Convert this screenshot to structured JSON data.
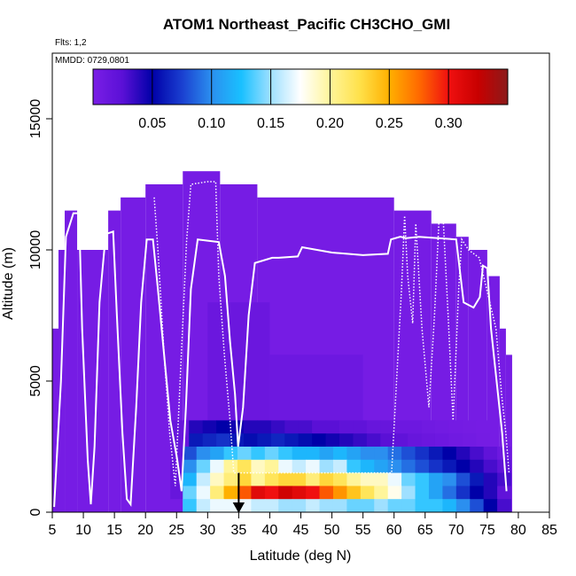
{
  "chart_data": {
    "type": "heatmap",
    "title": "ATOM1 Northeast_Pacific CH3CHO_GMI",
    "subtitle_flights": "Flts: 1,2",
    "subtitle_dates": "MMDD: 0729,0801",
    "xlabel": "Latitude (deg N)",
    "ylabel": "Altitude (m)",
    "xlim": [
      5,
      85
    ],
    "ylim": [
      0,
      17500
    ],
    "x_ticks": [
      5,
      10,
      15,
      20,
      25,
      30,
      35,
      40,
      45,
      50,
      55,
      60,
      65,
      70,
      75,
      80,
      85
    ],
    "y_ticks": [
      0,
      5000,
      10000,
      15000
    ],
    "colorbar": {
      "range": [
        0,
        0.35
      ],
      "ticks": [
        0.05,
        0.1,
        0.15,
        0.2,
        0.25,
        0.3
      ],
      "tick_labels": [
        "0.05",
        "0.10",
        "0.15",
        "0.20",
        "0.25",
        "0.30"
      ],
      "colors": [
        "#7a1ee6",
        "#5a10d6",
        "#0000a8",
        "#1a3fd0",
        "#2b8fef",
        "#19c0ff",
        "#9fe0ff",
        "#ffffff",
        "#fff59a",
        "#ffe14a",
        "#ffb000",
        "#ff6a00",
        "#f01010",
        "#c80000",
        "#8b1a1a"
      ]
    },
    "model_cells": [
      {
        "lat": [
          5,
          6
        ],
        "alt": [
          0,
          7000
        ],
        "value": 0.003
      },
      {
        "lat": [
          6,
          7
        ],
        "alt": [
          0,
          10000
        ],
        "value": 0.003
      },
      {
        "lat": [
          7,
          9
        ],
        "alt": [
          0,
          11500
        ],
        "value": 0.003
      },
      {
        "lat": [
          9,
          14
        ],
        "alt": [
          0,
          10000
        ],
        "value": 0.003
      },
      {
        "lat": [
          14,
          16
        ],
        "alt": [
          0,
          11500
        ],
        "value": 0.003
      },
      {
        "lat": [
          16,
          20
        ],
        "alt": [
          0,
          12000
        ],
        "value": 0.003
      },
      {
        "lat": [
          20,
          26
        ],
        "alt": [
          0,
          12500
        ],
        "value": 0.003
      },
      {
        "lat": [
          26,
          32
        ],
        "alt": [
          0,
          13000
        ],
        "value": 0.003
      },
      {
        "lat": [
          32,
          38
        ],
        "alt": [
          0,
          12500
        ],
        "value": 0.003
      },
      {
        "lat": [
          38,
          60
        ],
        "alt": [
          0,
          12000
        ],
        "value": 0.003
      },
      {
        "lat": [
          60,
          66
        ],
        "alt": [
          0,
          11500
        ],
        "value": 0.003
      },
      {
        "lat": [
          66,
          70
        ],
        "alt": [
          0,
          11000
        ],
        "value": 0.003
      },
      {
        "lat": [
          70,
          72
        ],
        "alt": [
          0,
          10500
        ],
        "value": 0.003
      },
      {
        "lat": [
          72,
          75
        ],
        "alt": [
          0,
          10000
        ],
        "value": 0.003
      },
      {
        "lat": [
          75,
          77
        ],
        "alt": [
          0,
          9000
        ],
        "value": 0.003
      },
      {
        "lat": [
          77,
          78
        ],
        "alt": [
          0,
          7000
        ],
        "value": 0.003
      },
      {
        "lat": [
          78,
          79
        ],
        "alt": [
          0,
          6000
        ],
        "value": 0.003
      },
      {
        "lat": [
          30,
          40
        ],
        "alt": [
          2000,
          8000
        ],
        "value": 0.012
      },
      {
        "lat": [
          40,
          55
        ],
        "alt": [
          2000,
          6000
        ],
        "value": 0.01
      },
      {
        "lat": [
          24,
          30
        ],
        "alt": [
          500,
          3500
        ],
        "value": 0.015
      }
    ],
    "curtain_rows": [
      {
        "alt": [
          3000,
          3500
        ],
        "lat0": 27,
        "cells": [
          0.04,
          0.045,
          0.05,
          0.045,
          0.04,
          0.04,
          0.035,
          0.03,
          0.03,
          0.025,
          0.025,
          0.02,
          0.02,
          0.015,
          0.015,
          0.01,
          0.01,
          0.008,
          0.006,
          0.005,
          0.004,
          0.003
        ]
      },
      {
        "alt": [
          2500,
          3000
        ],
        "lat0": 27,
        "cells": [
          0.06,
          0.065,
          0.07,
          0.06,
          0.055,
          0.06,
          0.065,
          0.06,
          0.055,
          0.05,
          0.045,
          0.04,
          0.035,
          0.03,
          0.025,
          0.02,
          0.015,
          0.012,
          0.01,
          0.008,
          0.006,
          0.004
        ]
      },
      {
        "alt": [
          2000,
          2500
        ],
        "lat0": 26,
        "cells": [
          0.08,
          0.1,
          0.11,
          0.13,
          0.14,
          0.13,
          0.14,
          0.13,
          0.12,
          0.12,
          0.11,
          0.12,
          0.11,
          0.1,
          0.1,
          0.09,
          0.08,
          0.07,
          0.06,
          0.05,
          0.04,
          0.03,
          0.02,
          0.01
        ]
      },
      {
        "alt": [
          1500,
          2000
        ],
        "lat0": 26,
        "cells": [
          0.1,
          0.14,
          0.17,
          0.2,
          0.22,
          0.19,
          0.2,
          0.17,
          0.16,
          0.17,
          0.15,
          0.16,
          0.13,
          0.12,
          0.11,
          0.1,
          0.09,
          0.08,
          0.07,
          0.06,
          0.05,
          0.04,
          0.03,
          0.02
        ]
      },
      {
        "alt": [
          1000,
          1500
        ],
        "lat0": 26,
        "cells": [
          0.12,
          0.16,
          0.19,
          0.21,
          0.23,
          0.2,
          0.22,
          0.23,
          0.23,
          0.21,
          0.23,
          0.22,
          0.2,
          0.19,
          0.19,
          0.17,
          0.14,
          0.13,
          0.11,
          0.1,
          0.08,
          0.06,
          0.04,
          0.03
        ]
      },
      {
        "alt": [
          500,
          1000
        ],
        "lat0": 26,
        "cells": [
          0.14,
          0.17,
          0.21,
          0.25,
          0.28,
          0.31,
          0.3,
          0.32,
          0.31,
          0.3,
          0.28,
          0.26,
          0.24,
          0.22,
          0.2,
          0.18,
          0.15,
          0.13,
          0.11,
          0.09,
          0.07,
          0.05,
          0.04,
          0.02
        ]
      },
      {
        "alt": [
          0,
          500
        ],
        "lat0": 26,
        "cells": [
          0.13,
          0.16,
          0.17,
          0.17,
          0.17,
          0.16,
          0.16,
          0.15,
          0.15,
          0.16,
          0.15,
          0.15,
          0.14,
          0.14,
          0.15,
          0.14,
          0.14,
          0.13,
          0.13,
          0.12,
          0.1,
          0.08,
          0.05,
          0.03
        ]
      }
    ],
    "flight_track": [
      [
        5.3,
        200
      ],
      [
        6.4,
        5000
      ],
      [
        7.2,
        10500
      ],
      [
        8.4,
        11400
      ],
      [
        9.3,
        11400
      ],
      [
        9.8,
        7000
      ],
      [
        10.7,
        2000
      ],
      [
        11.2,
        300
      ],
      [
        11.8,
        2500
      ],
      [
        12.6,
        8000
      ],
      [
        13.6,
        10600
      ],
      [
        14.8,
        10700
      ],
      [
        15.4,
        7500
      ],
      [
        16.3,
        3000
      ],
      [
        17.0,
        500
      ],
      [
        17.6,
        300
      ],
      [
        18.5,
        4000
      ],
      [
        19.3,
        8000
      ],
      [
        20.2,
        10400
      ],
      [
        21.2,
        10400
      ],
      [
        22.0,
        8500
      ],
      [
        23.0,
        6000
      ],
      [
        24.0,
        3500
      ],
      [
        25.1,
        2000
      ],
      [
        25.8,
        800
      ],
      [
        26.5,
        4000
      ],
      [
        27.3,
        8500
      ],
      [
        28.4,
        10400
      ],
      [
        31.8,
        10300
      ],
      [
        32.8,
        9000
      ],
      [
        33.6,
        6500
      ],
      [
        34.4,
        4500
      ],
      [
        34.9,
        2500
      ],
      [
        35.7,
        4000
      ],
      [
        36.6,
        7500
      ],
      [
        37.6,
        9500
      ],
      [
        40.4,
        9700
      ],
      [
        41.4,
        9700
      ],
      [
        44.5,
        9750
      ],
      [
        45.2,
        10100
      ],
      [
        50.0,
        9900
      ],
      [
        55.0,
        9800
      ],
      [
        59.0,
        9850
      ],
      [
        59.5,
        10400
      ],
      [
        61.0,
        10500
      ],
      [
        62.0,
        10450
      ],
      [
        64.0,
        10500
      ],
      [
        70.0,
        10400
      ],
      [
        71.2,
        8000
      ],
      [
        72.8,
        7800
      ],
      [
        73.8,
        8200
      ],
      [
        74.3,
        9400
      ],
      [
        75.0,
        9300
      ],
      [
        75.6,
        7000
      ],
      [
        76.5,
        5000
      ],
      [
        77.4,
        3000
      ],
      [
        78.1,
        800
      ]
    ],
    "flight_track_dotted": [
      [
        21.4,
        12000
      ],
      [
        22.0,
        10000
      ],
      [
        23.0,
        6000
      ],
      [
        23.9,
        3000
      ],
      [
        24.8,
        1000
      ],
      [
        26.6,
        10300
      ],
      [
        27.3,
        12500
      ],
      [
        30.0,
        12600
      ],
      [
        31.3,
        12600
      ],
      [
        31.8,
        9000
      ],
      [
        32.7,
        6000
      ],
      [
        33.6,
        3500
      ],
      [
        34.2,
        1500
      ],
      [
        59.6,
        1500
      ],
      [
        60.4,
        5000
      ],
      [
        61.2,
        8500
      ],
      [
        61.7,
        11300
      ],
      [
        62.2,
        9000
      ],
      [
        63.0,
        7200
      ],
      [
        63.5,
        11000
      ],
      [
        64.5,
        7000
      ],
      [
        65.6,
        4000
      ],
      [
        66.5,
        7500
      ],
      [
        67.2,
        11000
      ],
      [
        67.9,
        11200
      ],
      [
        68.7,
        7500
      ],
      [
        69.5,
        3500
      ],
      [
        70.4,
        8500
      ],
      [
        70.9,
        10400
      ],
      [
        72.0,
        10000
      ],
      [
        73.7,
        9700
      ],
      [
        76.4,
        7000
      ],
      [
        77.3,
        4500
      ],
      [
        78.0,
        3000
      ],
      [
        78.5,
        1500
      ]
    ],
    "marker": {
      "lat": 35,
      "symbol": "arrow-down"
    }
  }
}
